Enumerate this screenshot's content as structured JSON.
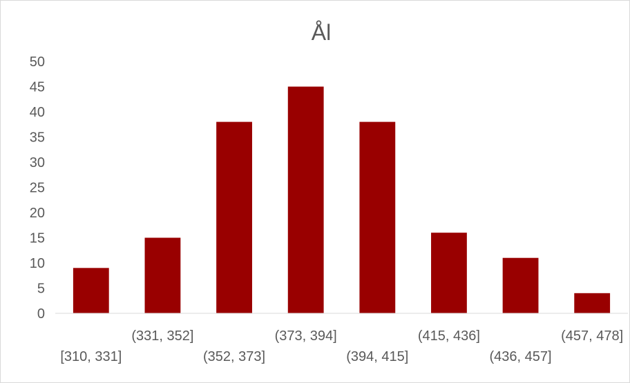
{
  "chart_data": {
    "type": "bar",
    "title": "Ål",
    "xlabel": "",
    "ylabel": "",
    "categories": [
      "[310, 331]",
      "(331, 352]",
      "(352, 373]",
      "(373, 394]",
      "(394, 415]",
      "(415, 436]",
      "(436, 457]",
      "(457, 478]"
    ],
    "values": [
      9,
      15,
      38,
      45,
      38,
      16,
      11,
      4
    ],
    "ylim": [
      0,
      50
    ],
    "yticks": [
      0,
      5,
      10,
      15,
      20,
      25,
      30,
      35,
      40,
      45,
      50
    ],
    "grid": false,
    "legend": "none",
    "bar_color": "#990000",
    "axis_color": "#d9d9d9",
    "text_color": "#595959"
  }
}
